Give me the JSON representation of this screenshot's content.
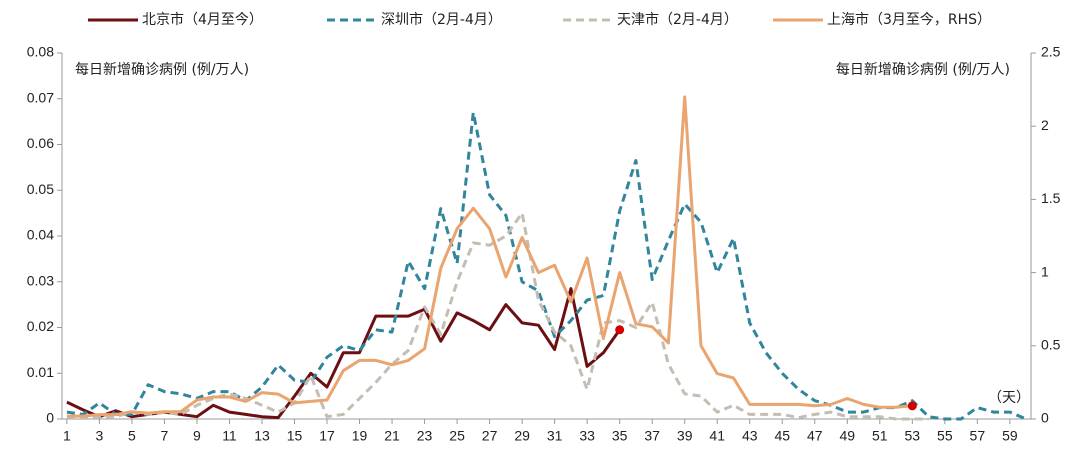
{
  "chart_data": {
    "type": "line",
    "annotations": [
      "每日新增确诊病例 (例/万人)",
      "每日新增确诊病例 (例/万人)",
      "（天）"
    ],
    "x": [
      1,
      2,
      3,
      4,
      5,
      6,
      7,
      8,
      9,
      10,
      11,
      12,
      13,
      14,
      15,
      16,
      17,
      18,
      19,
      20,
      21,
      22,
      23,
      24,
      25,
      26,
      27,
      28,
      29,
      30,
      31,
      32,
      33,
      34,
      35,
      36,
      37,
      38,
      39,
      40,
      41,
      42,
      43,
      44,
      45,
      46,
      47,
      48,
      49,
      50,
      51,
      52,
      53,
      54,
      55,
      56,
      57,
      58,
      59,
      60
    ],
    "xlim": [
      0.7,
      60.3
    ],
    "xticks": [
      1,
      3,
      5,
      7,
      9,
      11,
      13,
      15,
      17,
      19,
      21,
      23,
      25,
      27,
      29,
      31,
      33,
      35,
      37,
      39,
      41,
      43,
      45,
      47,
      49,
      51,
      53,
      55,
      57,
      59
    ],
    "ylim": [
      0,
      0.08
    ],
    "yticks": [
      0,
      0.01,
      0.02,
      0.03,
      0.04,
      0.05,
      0.06,
      0.07,
      0.08
    ],
    "y2lim": [
      0,
      2.5
    ],
    "y2ticks": [
      0,
      0.5,
      1,
      1.5,
      2,
      2.5
    ],
    "grid": false,
    "legend": "top",
    "series": [
      {
        "name": "北京市（4月至今）",
        "color": "#6b0f12",
        "dash": false,
        "end_marker": "#d40000",
        "values": [
          0.0037,
          0.002,
          0.0005,
          0.0018,
          0.0005,
          0.001,
          0.0015,
          0.001,
          0.0005,
          0.003,
          0.0015,
          0.001,
          0.0005,
          0.0003,
          0.005,
          0.01,
          0.007,
          0.0145,
          0.0145,
          0.0225,
          0.0225,
          0.0225,
          0.024,
          0.017,
          0.0232,
          0.0215,
          0.0195,
          0.025,
          0.021,
          0.0205,
          0.0152,
          0.0285,
          0.0115,
          0.0145,
          0.0195,
          null,
          null,
          null,
          null,
          null,
          null,
          null,
          null,
          null,
          null,
          null,
          null,
          null,
          null,
          null,
          null,
          null,
          null,
          null,
          null,
          null,
          null,
          null,
          null,
          null
        ]
      },
      {
        "name": "深圳市（2月-4月）",
        "color": "#31859c",
        "dash": true,
        "values": [
          0.0015,
          0.001,
          0.0035,
          0.001,
          0.001,
          0.0075,
          0.006,
          0.0055,
          0.0045,
          0.006,
          0.006,
          0.004,
          0.007,
          0.0118,
          0.0085,
          0.008,
          0.0135,
          0.016,
          0.015,
          0.0195,
          0.019,
          0.0345,
          0.0285,
          0.046,
          0.034,
          0.067,
          0.049,
          0.0445,
          0.03,
          0.028,
          0.018,
          0.0215,
          0.026,
          0.027,
          0.0455,
          0.0565,
          0.0305,
          0.039,
          0.047,
          0.043,
          0.032,
          0.0395,
          0.021,
          0.0145,
          0.01,
          0.0065,
          0.004,
          0.003,
          0.0015,
          0.0015,
          0.0025,
          0.0025,
          0.004,
          0.0005,
          0,
          0,
          0.0025,
          0.0015,
          0.0015,
          0
        ]
      },
      {
        "name": "天津市（2月-4月）",
        "color": "#c4bdb2",
        "dash": true,
        "values": [
          0.0005,
          0.0005,
          0.0005,
          0.0005,
          0.0015,
          0.001,
          0.0015,
          0.001,
          0.003,
          0.0045,
          0.0055,
          0.0045,
          0.003,
          0.0015,
          0.0035,
          0.0095,
          0.0005,
          0.001,
          0.0045,
          0.008,
          0.012,
          0.015,
          0.0245,
          0.0185,
          0.03,
          0.0385,
          0.038,
          0.04,
          0.045,
          0.026,
          0.019,
          0.016,
          0.0065,
          0.021,
          0.0215,
          0.02,
          0.0255,
          0.012,
          0.0055,
          0.005,
          0.0015,
          0.003,
          0.001,
          0.001,
          0.001,
          0.0003,
          0.001,
          0.0015,
          0.0005,
          0.0005,
          0.0005,
          0,
          0,
          0,
          null,
          null,
          null,
          null,
          null,
          null
        ]
      },
      {
        "name": "上海市（3月至今，RHS）",
        "color": "#e9a46f",
        "dash": false,
        "axis": "y2",
        "end_marker": "#d40000",
        "values": [
          0.02,
          0.02,
          0.03,
          0.03,
          0.05,
          0.04,
          0.05,
          0.05,
          0.13,
          0.15,
          0.15,
          0.12,
          0.18,
          0.17,
          0.11,
          0.12,
          0.13,
          0.33,
          0.4,
          0.4,
          0.37,
          0.4,
          0.48,
          1.03,
          1.3,
          1.44,
          1.3,
          0.97,
          1.24,
          1.0,
          1.05,
          0.8,
          1.1,
          0.55,
          1.0,
          0.65,
          0.63,
          0.52,
          2.2,
          0.5,
          0.31,
          0.28,
          0.1,
          0.1,
          0.1,
          0.1,
          0.09,
          0.1,
          0.14,
          0.1,
          0.08,
          0.08,
          0.09,
          null,
          null,
          null,
          null,
          null,
          null,
          null
        ]
      }
    ]
  }
}
